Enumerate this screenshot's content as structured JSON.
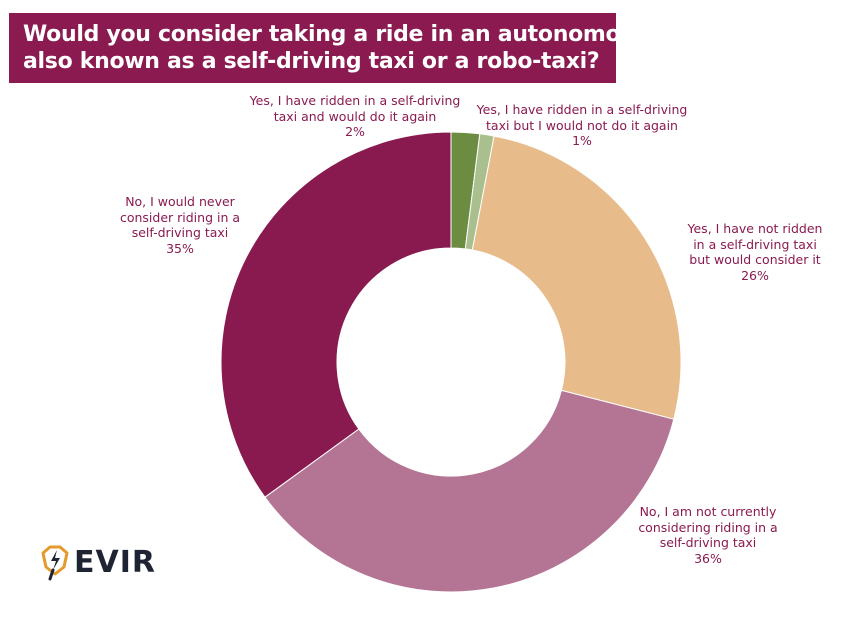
{
  "title": {
    "line1": "Would you consider taking a ride in an autonomous taxi,",
    "line2": "also known as a  self-driving taxi or a robo-taxi?"
  },
  "logo": {
    "text": "EVIR",
    "icon": "lightning-shield-icon",
    "accent": "#e59a2c",
    "dark": "#1e2433"
  },
  "chart_data": {
    "type": "pie",
    "style": "donut",
    "title": "Would you consider taking a ride in an autonomous taxi, also known as a  self-driving taxi or a robo-taxi?",
    "slices": [
      {
        "lines": [
          "Yes, I have ridden in a self-driving",
          "taxi and would do it again"
        ],
        "value_label": "2%",
        "value": 2,
        "color": "#6b8c41"
      },
      {
        "lines": [
          "Yes, I have ridden in a self-driving",
          "taxi but I would not do it again"
        ],
        "value_label": "1%",
        "value": 1,
        "color": "#a9c08e"
      },
      {
        "lines": [
          "Yes, I have not ridden",
          "in a self-driving taxi",
          "but would consider it"
        ],
        "value_label": "26%",
        "value": 26,
        "color": "#e8bb8a"
      },
      {
        "lines": [
          "No, I am not currently",
          "considering riding in a",
          "self-driving taxi"
        ],
        "value_label": "36%",
        "value": 36,
        "color": "#b47594"
      },
      {
        "lines": [
          "No, I would never",
          "consider riding in a",
          "self-driving taxi"
        ],
        "value_label": "35%",
        "value": 35,
        "color": "#881a4f"
      }
    ]
  }
}
